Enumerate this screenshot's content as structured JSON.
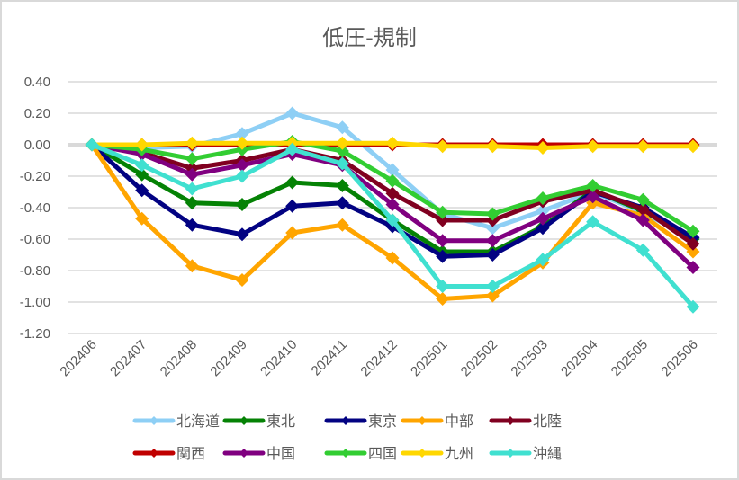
{
  "chart_data": {
    "type": "line",
    "title": "低圧-規制",
    "xlabel": "",
    "ylabel": "",
    "ylim": [
      -1.2,
      0.4
    ],
    "yticks": [
      "0.40",
      "0.20",
      "0.00",
      "-0.20",
      "-0.40",
      "-0.60",
      "-0.80",
      "-1.00",
      "-1.20"
    ],
    "ytick_values": [
      0.4,
      0.2,
      0.0,
      -0.2,
      -0.4,
      -0.6,
      -0.8,
      -1.0,
      -1.2
    ],
    "grid": true,
    "legend_position": "bottom",
    "categories": [
      "202406",
      "202407",
      "202408",
      "202409",
      "202410",
      "202411",
      "202412",
      "202501",
      "202502",
      "202503",
      "202504",
      "202505",
      "202506"
    ],
    "series": [
      {
        "name": "北海道",
        "color": "#8ecff5",
        "values": [
          0.0,
          -0.02,
          -0.01,
          0.07,
          0.2,
          0.11,
          -0.16,
          -0.44,
          -0.53,
          -0.42,
          -0.3,
          -0.43,
          -0.6
        ]
      },
      {
        "name": "東北",
        "color": "#058205",
        "values": [
          0.0,
          -0.19,
          -0.37,
          -0.38,
          -0.24,
          -0.26,
          -0.48,
          -0.68,
          -0.68,
          -0.52,
          -0.29,
          -0.42,
          -0.6
        ]
      },
      {
        "name": "東京",
        "color": "#020282",
        "values": [
          0.0,
          -0.29,
          -0.51,
          -0.57,
          -0.39,
          -0.37,
          -0.52,
          -0.71,
          -0.7,
          -0.53,
          -0.3,
          -0.4,
          -0.59
        ]
      },
      {
        "name": "中部",
        "color": "#ffa500",
        "values": [
          0.0,
          -0.47,
          -0.77,
          -0.86,
          -0.56,
          -0.51,
          -0.72,
          -0.98,
          -0.96,
          -0.75,
          -0.37,
          -0.45,
          -0.68
        ]
      },
      {
        "name": "北陸",
        "color": "#800020",
        "values": [
          0.0,
          -0.05,
          -0.15,
          -0.1,
          -0.03,
          -0.1,
          -0.31,
          -0.48,
          -0.48,
          -0.36,
          -0.29,
          -0.41,
          -0.63
        ]
      },
      {
        "name": "関西",
        "color": "#c00000",
        "values": [
          0.0,
          0.0,
          0.0,
          0.0,
          0.0,
          0.0,
          0.0,
          0.0,
          0.0,
          0.0,
          0.0,
          0.0,
          0.0
        ]
      },
      {
        "name": "中国",
        "color": "#800080",
        "values": [
          0.0,
          -0.06,
          -0.19,
          -0.13,
          -0.06,
          -0.13,
          -0.38,
          -0.61,
          -0.61,
          -0.47,
          -0.33,
          -0.48,
          -0.78
        ]
      },
      {
        "name": "四国",
        "color": "#32cd32",
        "values": [
          0.0,
          -0.03,
          -0.09,
          -0.03,
          0.02,
          -0.04,
          -0.23,
          -0.43,
          -0.44,
          -0.34,
          -0.26,
          -0.35,
          -0.55
        ]
      },
      {
        "name": "九州",
        "color": "#ffd700",
        "values": [
          0.0,
          0.0,
          0.01,
          0.01,
          0.01,
          0.01,
          0.01,
          -0.01,
          -0.01,
          -0.02,
          -0.01,
          -0.01,
          -0.01
        ]
      },
      {
        "name": "沖縄",
        "color": "#40e0d0",
        "values": [
          0.0,
          -0.13,
          -0.28,
          -0.2,
          -0.03,
          -0.12,
          -0.48,
          -0.9,
          -0.9,
          -0.73,
          -0.49,
          -0.67,
          -1.03
        ]
      }
    ]
  }
}
